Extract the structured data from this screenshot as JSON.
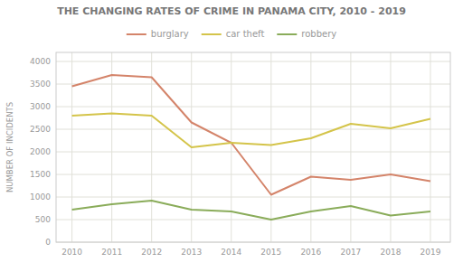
{
  "chart_data": {
    "type": "line",
    "title": "THE CHANGING RATES OF CRIME IN PANAMA CITY, 2010 - 2019",
    "y_label": "NUMBER OF INCIDENTS",
    "x": [
      2010,
      2011,
      2012,
      2013,
      2014,
      2015,
      2016,
      2017,
      2018,
      2019
    ],
    "series": [
      {
        "name": "burglary",
        "color": "#d4846a",
        "values": [
          3450,
          3700,
          3650,
          2650,
          2200,
          1050,
          1450,
          1380,
          1500,
          1350
        ]
      },
      {
        "name": "car theft",
        "color": "#d4c44a",
        "values": [
          2800,
          2850,
          2800,
          2100,
          2200,
          2150,
          2300,
          2620,
          2520,
          2730
        ]
      },
      {
        "name": "robbery",
        "color": "#8aac5a",
        "values": [
          720,
          840,
          920,
          720,
          680,
          500,
          680,
          800,
          590,
          680
        ]
      }
    ],
    "xlim": [
      2009.6,
      2019.5
    ],
    "xticks": [
      2010,
      2011,
      2012,
      2013,
      2014,
      2015,
      2016,
      2017,
      2018,
      2019
    ],
    "ylim": [
      0,
      4200
    ],
    "yticks": [
      0,
      500,
      1000,
      1500,
      2000,
      2500,
      3000,
      3500,
      4000
    ],
    "grid": true,
    "legend": "top"
  }
}
